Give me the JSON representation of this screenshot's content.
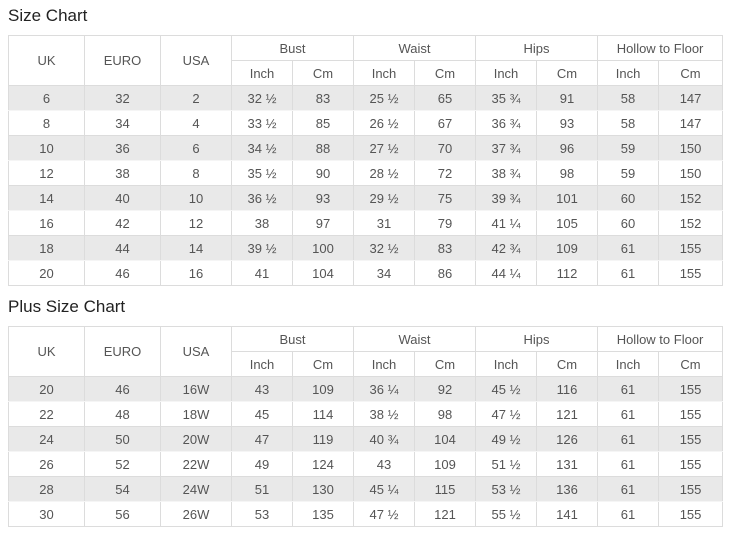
{
  "colors": {
    "stripe_row_bg": "#e9e9e9",
    "cell_border": "#dcdcdc",
    "body_text": "#555555",
    "title_text": "#222222",
    "page_bg": "#ffffff"
  },
  "tables": [
    {
      "title": "Size Chart",
      "size_columns": [
        "UK",
        "EURO",
        "USA"
      ],
      "measure_groups": [
        "Bust",
        "Waist",
        "Hips",
        "Hollow to Floor"
      ],
      "unit_labels": [
        "Inch",
        "Cm"
      ],
      "rows": [
        [
          "6",
          "32",
          "2",
          "32 ½",
          "83",
          "25 ½",
          "65",
          "35 ¾",
          "91",
          "58",
          "147"
        ],
        [
          "8",
          "34",
          "4",
          "33 ½",
          "85",
          "26 ½",
          "67",
          "36 ¾",
          "93",
          "58",
          "147"
        ],
        [
          "10",
          "36",
          "6",
          "34 ½",
          "88",
          "27 ½",
          "70",
          "37 ¾",
          "96",
          "59",
          "150"
        ],
        [
          "12",
          "38",
          "8",
          "35 ½",
          "90",
          "28 ½",
          "72",
          "38 ¾",
          "98",
          "59",
          "150"
        ],
        [
          "14",
          "40",
          "10",
          "36 ½",
          "93",
          "29 ½",
          "75",
          "39 ¾",
          "101",
          "60",
          "152"
        ],
        [
          "16",
          "42",
          "12",
          "38",
          "97",
          "31",
          "79",
          "41 ¼",
          "105",
          "60",
          "152"
        ],
        [
          "18",
          "44",
          "14",
          "39 ½",
          "100",
          "32 ½",
          "83",
          "42 ¾",
          "109",
          "61",
          "155"
        ],
        [
          "20",
          "46",
          "16",
          "41",
          "104",
          "34",
          "86",
          "44 ¼",
          "112",
          "61",
          "155"
        ]
      ]
    },
    {
      "title": "Plus Size Chart",
      "size_columns": [
        "UK",
        "EURO",
        "USA"
      ],
      "measure_groups": [
        "Bust",
        "Waist",
        "Hips",
        "Hollow to Floor"
      ],
      "unit_labels": [
        "Inch",
        "Cm"
      ],
      "rows": [
        [
          "20",
          "46",
          "16W",
          "43",
          "109",
          "36 ¼",
          "92",
          "45 ½",
          "116",
          "61",
          "155"
        ],
        [
          "22",
          "48",
          "18W",
          "45",
          "114",
          "38 ½",
          "98",
          "47 ½",
          "121",
          "61",
          "155"
        ],
        [
          "24",
          "50",
          "20W",
          "47",
          "119",
          "40 ¾",
          "104",
          "49 ½",
          "126",
          "61",
          "155"
        ],
        [
          "26",
          "52",
          "22W",
          "49",
          "124",
          "43",
          "109",
          "51 ½",
          "131",
          "61",
          "155"
        ],
        [
          "28",
          "54",
          "24W",
          "51",
          "130",
          "45 ¼",
          "115",
          "53 ½",
          "136",
          "61",
          "155"
        ],
        [
          "30",
          "56",
          "26W",
          "53",
          "135",
          "47 ½",
          "121",
          "55 ½",
          "141",
          "61",
          "155"
        ]
      ]
    }
  ]
}
